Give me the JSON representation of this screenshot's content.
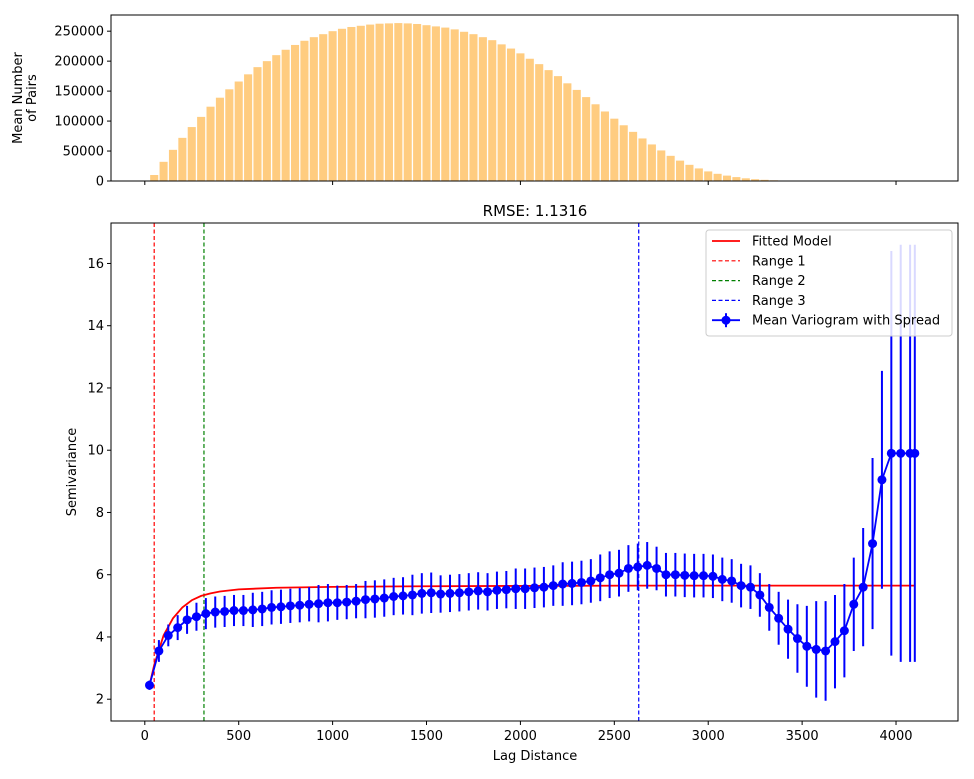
{
  "chart_data": [
    {
      "type": "bar",
      "ylabel_lines": [
        "Mean Number",
        "of Pairs"
      ],
      "xlim": [
        -180,
        4330
      ],
      "ylim": [
        0,
        277000
      ],
      "yticks": [
        0,
        50000,
        100000,
        150000,
        200000,
        250000
      ],
      "xticks": [
        0,
        1000,
        2000,
        3000,
        4000
      ],
      "bar_color": "#ffcc80",
      "bar_width": 43,
      "x": [
        50,
        100,
        150,
        200,
        250,
        300,
        350,
        400,
        450,
        500,
        550,
        600,
        650,
        700,
        750,
        800,
        850,
        900,
        950,
        1000,
        1050,
        1100,
        1150,
        1200,
        1250,
        1300,
        1350,
        1400,
        1450,
        1500,
        1550,
        1600,
        1650,
        1700,
        1750,
        1800,
        1850,
        1900,
        1950,
        2000,
        2050,
        2100,
        2150,
        2200,
        2250,
        2300,
        2350,
        2400,
        2450,
        2500,
        2550,
        2600,
        2650,
        2700,
        2750,
        2800,
        2850,
        2900,
        2950,
        3000,
        3050,
        3100,
        3150,
        3200,
        3250,
        3300,
        3350,
        3400,
        3450,
        3500,
        3550,
        3600,
        3650,
        3700,
        3750,
        3800,
        3850,
        3900,
        3950,
        4000,
        4050,
        4100
      ],
      "values": [
        10000,
        32000,
        52000,
        72000,
        90000,
        107000,
        124000,
        139000,
        153000,
        166000,
        178000,
        190000,
        200000,
        210000,
        219000,
        227000,
        234000,
        240000,
        245000,
        250000,
        254000,
        257000,
        259000,
        261000,
        262500,
        263000,
        263500,
        263000,
        262000,
        260000,
        258000,
        256000,
        253000,
        249000,
        245000,
        240000,
        235000,
        228000,
        221000,
        213000,
        204000,
        195000,
        185000,
        175000,
        163000,
        152000,
        140000,
        128000,
        116000,
        104000,
        93000,
        82000,
        71000,
        61000,
        51000,
        42000,
        34000,
        27000,
        21000,
        16000,
        12000,
        9000,
        6500,
        4500,
        3000,
        2000,
        1200,
        700,
        400,
        200,
        100,
        50,
        20,
        10,
        5,
        2,
        1,
        0,
        0,
        0,
        0,
        0
      ]
    },
    {
      "type": "line",
      "title": "RMSE: 1.1316",
      "xlabel": "Lag Distance",
      "ylabel": "Semivariance",
      "xlim": [
        -180,
        4330
      ],
      "ylim": [
        1.3,
        17.3
      ],
      "xticks": [
        0,
        500,
        1000,
        1500,
        2000,
        2500,
        3000,
        3500,
        4000
      ],
      "yticks": [
        2,
        4,
        6,
        8,
        10,
        12,
        14,
        16
      ],
      "legend_position": "upper right",
      "legend": [
        {
          "label": "Fitted Model",
          "style": "solid",
          "color": "#ff0000"
        },
        {
          "label": "Range 1",
          "style": "dashed",
          "color": "#ff0000"
        },
        {
          "label": "Range 2",
          "style": "dashed",
          "color": "#008000"
        },
        {
          "label": "Range 3",
          "style": "dashed",
          "color": "#0000ff"
        },
        {
          "label": "Mean Variogram with Spread",
          "style": "errorbar",
          "color": "#0000ff"
        }
      ],
      "ranges": [
        {
          "x": 50,
          "color": "#ff0000"
        },
        {
          "x": 315,
          "color": "#008000"
        },
        {
          "x": 2630,
          "color": "#0000ff"
        }
      ],
      "fitted_model": {
        "color": "#ff0000",
        "x": [
          25,
          50,
          100,
          150,
          200,
          250,
          300,
          350,
          400,
          500,
          700,
          1000,
          1500,
          2000,
          2630,
          4100
        ],
        "y": [
          2.45,
          3.1,
          4.05,
          4.6,
          4.95,
          5.18,
          5.32,
          5.4,
          5.46,
          5.53,
          5.58,
          5.61,
          5.63,
          5.64,
          5.65,
          5.65
        ]
      },
      "series": {
        "name": "Mean Variogram with Spread",
        "color": "#0000ff",
        "x": [
          25,
          75,
          125,
          175,
          225,
          275,
          325,
          375,
          425,
          475,
          525,
          575,
          625,
          675,
          725,
          775,
          825,
          875,
          925,
          975,
          1025,
          1075,
          1125,
          1175,
          1225,
          1275,
          1325,
          1375,
          1425,
          1475,
          1525,
          1575,
          1625,
          1675,
          1725,
          1775,
          1825,
          1875,
          1925,
          1975,
          2025,
          2075,
          2125,
          2175,
          2225,
          2275,
          2325,
          2375,
          2425,
          2475,
          2525,
          2575,
          2625,
          2675,
          2725,
          2775,
          2825,
          2875,
          2925,
          2975,
          3025,
          3075,
          3125,
          3175,
          3225,
          3275,
          3325,
          3375,
          3425,
          3475,
          3525,
          3575,
          3625,
          3675,
          3725,
          3775,
          3825,
          3875,
          3925,
          3975,
          4025,
          4075,
          4100
        ],
        "y": [
          2.45,
          3.55,
          4.05,
          4.3,
          4.55,
          4.65,
          4.75,
          4.8,
          4.82,
          4.85,
          4.85,
          4.87,
          4.9,
          4.95,
          4.97,
          5.0,
          5.02,
          5.05,
          5.07,
          5.1,
          5.1,
          5.12,
          5.15,
          5.2,
          5.22,
          5.25,
          5.3,
          5.32,
          5.35,
          5.4,
          5.42,
          5.38,
          5.4,
          5.42,
          5.45,
          5.48,
          5.45,
          5.5,
          5.52,
          5.55,
          5.55,
          5.58,
          5.6,
          5.65,
          5.7,
          5.72,
          5.75,
          5.8,
          5.9,
          6.0,
          6.05,
          6.2,
          6.25,
          6.3,
          6.2,
          6.0,
          6.0,
          5.98,
          5.97,
          5.97,
          5.95,
          5.85,
          5.8,
          5.65,
          5.6,
          5.35,
          4.95,
          4.6,
          4.25,
          3.95,
          3.7,
          3.6,
          3.55,
          3.85,
          4.2,
          5.05,
          5.6,
          7.0,
          9.05,
          9.9,
          9.9,
          9.9,
          9.9
        ],
        "err": [
          0.15,
          0.35,
          0.35,
          0.4,
          0.45,
          0.45,
          0.5,
          0.5,
          0.5,
          0.5,
          0.5,
          0.55,
          0.55,
          0.55,
          0.55,
          0.55,
          0.55,
          0.55,
          0.6,
          0.6,
          0.55,
          0.55,
          0.55,
          0.6,
          0.6,
          0.6,
          0.6,
          0.6,
          0.65,
          0.65,
          0.65,
          0.6,
          0.6,
          0.6,
          0.6,
          0.6,
          0.6,
          0.6,
          0.6,
          0.65,
          0.65,
          0.65,
          0.65,
          0.65,
          0.7,
          0.7,
          0.7,
          0.7,
          0.75,
          0.75,
          0.75,
          0.75,
          0.75,
          0.75,
          0.7,
          0.7,
          0.7,
          0.7,
          0.7,
          0.7,
          0.7,
          0.7,
          0.7,
          0.7,
          0.7,
          0.7,
          0.75,
          0.85,
          0.95,
          1.1,
          1.3,
          1.55,
          1.6,
          1.5,
          1.5,
          1.5,
          1.9,
          2.75,
          3.5,
          6.5,
          6.7,
          6.7,
          6.7
        ]
      }
    }
  ]
}
